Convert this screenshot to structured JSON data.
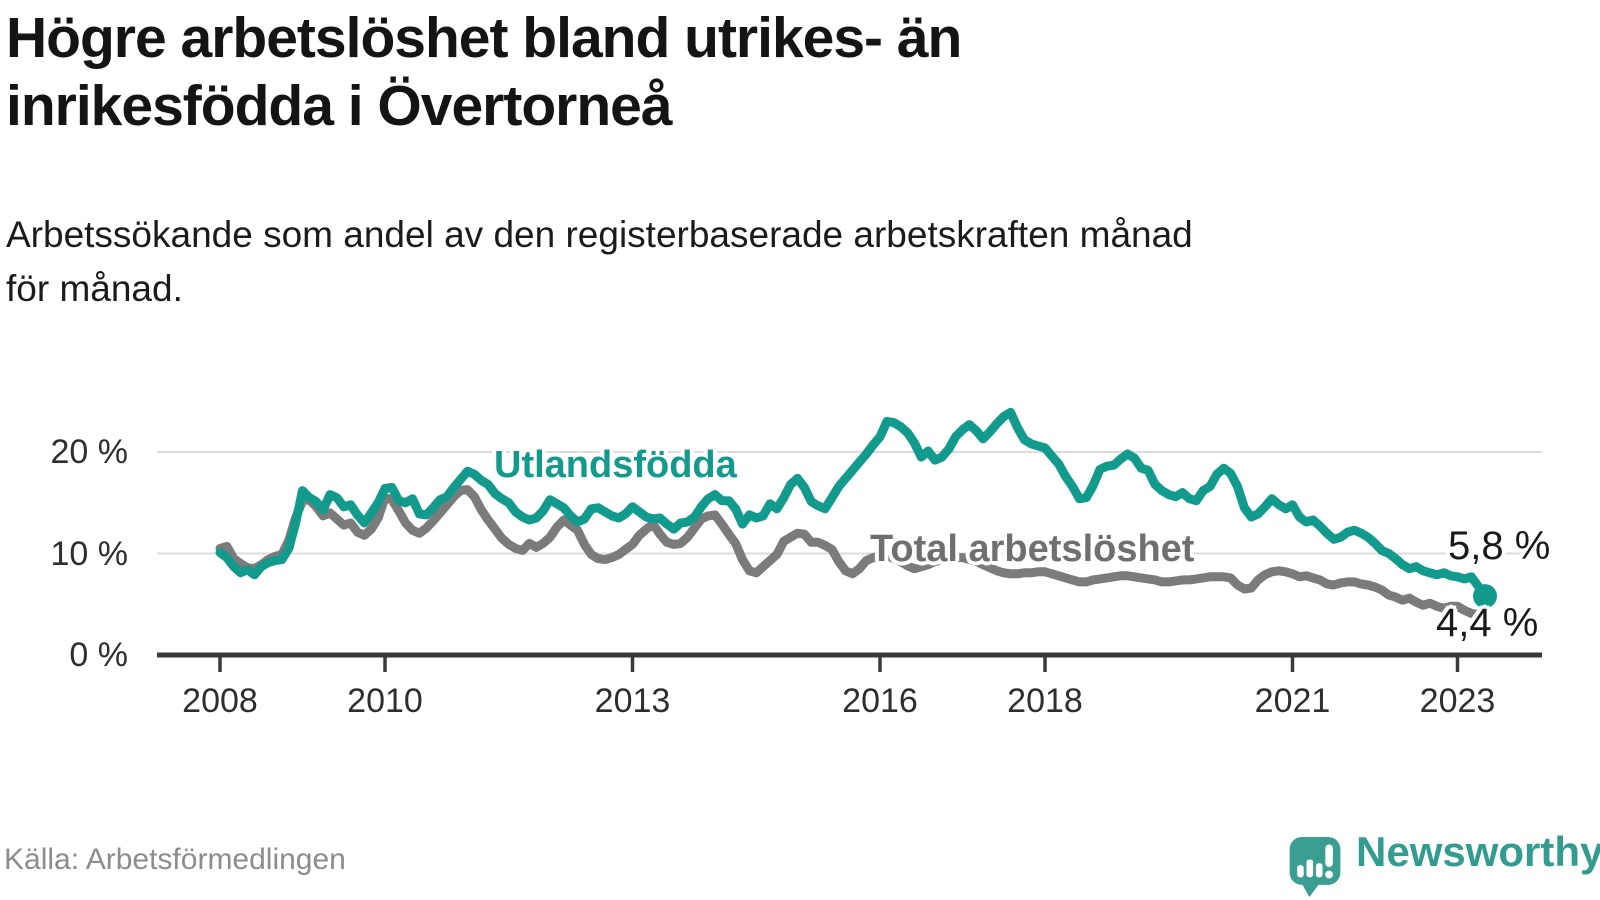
{
  "header": {
    "title_lines": [
      "Högre arbetslöshet bland utrikes- än",
      "inrikesfödda i Övertorneå"
    ],
    "subtitle_lines": [
      "Arbetssökande som andel av den registerbaserade arbetskraften månad",
      "för månad."
    ]
  },
  "chart_data": {
    "type": "line",
    "title": "Högre arbetslöshet bland utrikes- än inrikesfödda i Övertorneå",
    "subtitle": "Arbetssökande som andel av den registerbaserade arbetskraften månad för månad.",
    "unit": "%",
    "x_start_year": 2008,
    "x_interval": "monthly",
    "x_end": "2023-05",
    "xlim": [
      2007.15,
      2023.95
    ],
    "ylim": [
      0,
      26
    ],
    "grid": "horizontal-only",
    "legend_position": "inline-labels-on-lines",
    "x_ticks": [
      {
        "year": 2008,
        "label": "2008"
      },
      {
        "year": 2010,
        "label": "2010"
      },
      {
        "year": 2013,
        "label": "2013"
      },
      {
        "year": 2016,
        "label": "2016"
      },
      {
        "year": 2018,
        "label": "2018"
      },
      {
        "year": 2021,
        "label": "2021"
      },
      {
        "year": 2023,
        "label": "2023"
      }
    ],
    "y_ticks": [
      {
        "value": 0,
        "label": "0 %"
      },
      {
        "value": 10,
        "label": "10 %"
      },
      {
        "value": 20,
        "label": "20 %"
      }
    ],
    "series": [
      {
        "name": "Utlandsfödda",
        "color": "#129b8d",
        "end_label": "5,8 %",
        "end_value": 5.8,
        "end_dot": true,
        "values": [
          10.1,
          9.6,
          8.7,
          8.1,
          8.4,
          7.9,
          8.7,
          9.1,
          9.3,
          9.4,
          10.5,
          13.0,
          16.2,
          15.5,
          15.1,
          14.3,
          15.8,
          15.5,
          14.6,
          14.8,
          13.8,
          13.0,
          14.0,
          15.0,
          16.4,
          16.5,
          15.2,
          15.0,
          15.4,
          13.9,
          13.8,
          14.5,
          15.3,
          15.6,
          16.5,
          17.3,
          18.1,
          17.8,
          17.2,
          16.8,
          15.9,
          15.4,
          15.0,
          14.1,
          13.6,
          13.3,
          13.5,
          14.2,
          15.3,
          14.9,
          14.5,
          13.7,
          13.1,
          13.4,
          14.4,
          14.5,
          14.1,
          13.7,
          13.5,
          13.9,
          14.6,
          14.1,
          13.6,
          13.4,
          13.5,
          12.9,
          12.4,
          13.0,
          13.1,
          13.6,
          14.6,
          15.4,
          15.8,
          15.2,
          15.2,
          14.4,
          12.9,
          13.8,
          13.5,
          13.7,
          14.9,
          14.4,
          15.5,
          16.8,
          17.4,
          16.5,
          15.1,
          14.7,
          14.4,
          15.5,
          16.6,
          17.4,
          18.2,
          19.0,
          19.8,
          20.7,
          21.5,
          23.0,
          22.9,
          22.5,
          21.9,
          20.9,
          19.5,
          20.1,
          19.2,
          19.5,
          20.3,
          21.5,
          22.2,
          22.7,
          22.1,
          21.3,
          22.0,
          22.8,
          23.5,
          23.9,
          22.4,
          21.2,
          20.8,
          20.6,
          20.4,
          19.6,
          18.8,
          17.6,
          16.6,
          15.4,
          15.5,
          16.7,
          18.3,
          18.6,
          18.7,
          19.3,
          19.8,
          19.4,
          18.4,
          18.2,
          16.8,
          16.2,
          15.8,
          15.6,
          16.0,
          15.4,
          15.2,
          16.2,
          16.6,
          17.8,
          18.4,
          17.9,
          16.6,
          14.5,
          13.6,
          13.9,
          14.6,
          15.4,
          14.8,
          14.4,
          14.8,
          13.6,
          13.1,
          13.3,
          12.7,
          12.0,
          11.4,
          11.6,
          12.1,
          12.3,
          12.0,
          11.6,
          11.0,
          10.3,
          10.0,
          9.5,
          8.9,
          8.5,
          8.7,
          8.3,
          8.1,
          7.9,
          8.1,
          7.8,
          7.7,
          7.5,
          7.7,
          6.8,
          5.8
        ]
      },
      {
        "name": "Total arbetslöshet",
        "color": "#7b7b7b",
        "end_label": "4,4 %",
        "end_value": 4.4,
        "end_dot": false,
        "values": [
          10.5,
          10.7,
          9.5,
          9.0,
          8.6,
          8.5,
          8.9,
          9.4,
          9.7,
          9.9,
          11.3,
          13.5,
          15.2,
          15.3,
          14.6,
          13.7,
          14.0,
          13.4,
          12.8,
          13.0,
          12.1,
          11.8,
          12.4,
          13.5,
          15.5,
          15.3,
          14.2,
          13.0,
          12.3,
          12.0,
          12.5,
          13.2,
          14.0,
          14.8,
          15.6,
          16.2,
          16.3,
          15.6,
          14.3,
          13.3,
          12.4,
          11.5,
          10.9,
          10.5,
          10.3,
          11.0,
          10.6,
          11.0,
          11.6,
          12.6,
          13.3,
          12.8,
          12.3,
          10.9,
          9.9,
          9.5,
          9.4,
          9.6,
          9.9,
          10.4,
          10.9,
          11.8,
          12.4,
          12.9,
          11.9,
          11.1,
          10.9,
          11.0,
          11.6,
          12.5,
          13.4,
          13.7,
          13.8,
          12.9,
          11.9,
          11.0,
          9.4,
          8.3,
          8.1,
          8.7,
          9.3,
          9.9,
          11.2,
          11.6,
          12.0,
          11.9,
          11.1,
          11.1,
          10.8,
          10.4,
          9.2,
          8.3,
          8.0,
          8.5,
          9.3,
          9.6,
          9.7,
          9.8,
          9.5,
          9.2,
          8.8,
          8.5,
          8.7,
          8.9,
          9.2,
          9.4,
          9.5,
          9.6,
          9.6,
          9.4,
          9.2,
          8.9,
          8.6,
          8.3,
          8.1,
          8.0,
          8.0,
          8.1,
          8.1,
          8.2,
          8.2,
          8.0,
          7.8,
          7.6,
          7.4,
          7.2,
          7.2,
          7.4,
          7.5,
          7.6,
          7.7,
          7.8,
          7.8,
          7.7,
          7.6,
          7.5,
          7.4,
          7.2,
          7.2,
          7.3,
          7.4,
          7.4,
          7.5,
          7.6,
          7.7,
          7.7,
          7.7,
          7.6,
          6.9,
          6.5,
          6.6,
          7.4,
          7.9,
          8.2,
          8.3,
          8.2,
          8.0,
          7.7,
          7.8,
          7.6,
          7.4,
          7.0,
          6.9,
          7.1,
          7.2,
          7.2,
          7.0,
          6.9,
          6.7,
          6.4,
          5.9,
          5.7,
          5.4,
          5.6,
          5.2,
          4.9,
          5.1,
          4.8,
          4.6,
          4.8,
          4.8,
          4.4,
          4.1,
          4.0,
          4.4
        ]
      }
    ],
    "colors": {
      "accent_teal": "#129b8d",
      "series_gray": "#7b7b7b",
      "axis": "#3a3a3a",
      "gridline": "#dcdcdc"
    }
  },
  "footer": {
    "source": "Källa: Arbetsförmedlingen",
    "brand": "Newsworthy"
  }
}
